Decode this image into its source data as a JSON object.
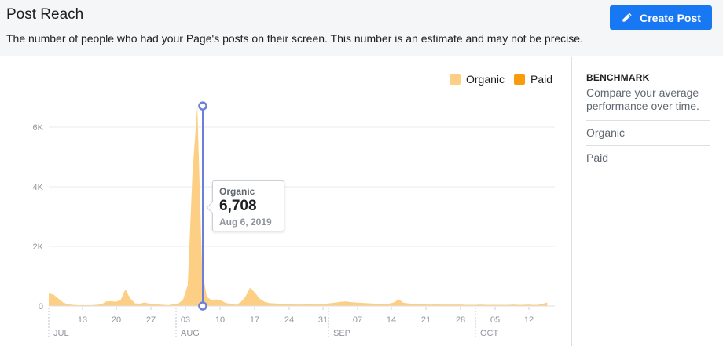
{
  "header": {
    "title": "Post Reach",
    "subtitle": "The number of people who had your Page's posts on their screen. This number is an estimate and may not be precise.",
    "create_button_label": "Create Post",
    "create_button_icon": "pencil-icon",
    "accent_color": "#1877f2"
  },
  "legend": [
    {
      "label": "Organic",
      "color": "#fdcf85"
    },
    {
      "label": "Paid",
      "color": "#f89c0e"
    }
  ],
  "tooltip": {
    "label": "Organic",
    "value": "6,708",
    "date": "Aug 6, 2019"
  },
  "sidebar": {
    "title": "BENCHMARK",
    "description": "Compare your average performance over time.",
    "items": [
      "Organic",
      "Paid"
    ]
  },
  "chart_data": {
    "type": "area",
    "y_ticks": [
      "0",
      "2K",
      "4K",
      "6K"
    ],
    "ylim": [
      0,
      7000
    ],
    "x_day_ticks": [
      "13",
      "20",
      "27",
      "03",
      "10",
      "17",
      "24",
      "31",
      "07",
      "14",
      "21",
      "28",
      "05",
      "12"
    ],
    "x_month_ticks": [
      "JUL",
      "AUG",
      "SEP",
      "OCT"
    ],
    "highlight": {
      "label": "Aug 6, 2019",
      "value": 6708
    },
    "series": [
      {
        "name": "Organic",
        "color": "#fdcf85",
        "x": [
          "Jul 6",
          "Jul 7",
          "Jul 8",
          "Jul 9",
          "Jul 10",
          "Jul 11",
          "Jul 12",
          "Jul 13",
          "Jul 14",
          "Jul 15",
          "Jul 16",
          "Jul 17",
          "Jul 18",
          "Jul 19",
          "Jul 20",
          "Jul 21",
          "Jul 22",
          "Jul 23",
          "Jul 24",
          "Jul 25",
          "Jul 26",
          "Jul 27",
          "Jul 28",
          "Jul 29",
          "Jul 30",
          "Jul 31",
          "Aug 1",
          "Aug 2",
          "Aug 3",
          "Aug 4",
          "Aug 5",
          "Aug 6",
          "Aug 7",
          "Aug 8",
          "Aug 9",
          "Aug 10",
          "Aug 11",
          "Aug 12",
          "Aug 13",
          "Aug 14",
          "Aug 15",
          "Aug 16",
          "Aug 17",
          "Aug 18",
          "Aug 19",
          "Aug 20",
          "Aug 21",
          "Aug 22",
          "Aug 23",
          "Aug 24",
          "Aug 25",
          "Aug 26",
          "Aug 27",
          "Aug 28",
          "Aug 29",
          "Aug 30",
          "Aug 31",
          "Sep 1",
          "Sep 2",
          "Sep 3",
          "Sep 4",
          "Sep 5",
          "Sep 6",
          "Sep 7",
          "Sep 8",
          "Sep 9",
          "Sep 10",
          "Sep 11",
          "Sep 12",
          "Sep 13",
          "Sep 14",
          "Sep 15",
          "Sep 16",
          "Sep 17",
          "Sep 18",
          "Sep 19",
          "Sep 20",
          "Sep 21",
          "Sep 22",
          "Sep 23",
          "Sep 24",
          "Sep 25",
          "Sep 26",
          "Sep 27",
          "Sep 28",
          "Sep 29",
          "Sep 30",
          "Oct 1",
          "Oct 2",
          "Oct 3",
          "Oct 4",
          "Oct 5",
          "Oct 6",
          "Oct 7",
          "Oct 8",
          "Oct 9",
          "Oct 10",
          "Oct 11",
          "Oct 12",
          "Oct 13",
          "Oct 14",
          "Oct 15",
          "Oct 16",
          "Oct 17",
          "Oct 18"
        ],
        "values": [
          420,
          380,
          250,
          120,
          60,
          40,
          30,
          30,
          30,
          30,
          40,
          60,
          150,
          160,
          140,
          200,
          560,
          250,
          90,
          80,
          120,
          80,
          60,
          50,
          40,
          30,
          60,
          80,
          200,
          700,
          4500,
          6708,
          1200,
          300,
          200,
          220,
          180,
          100,
          80,
          40,
          120,
          300,
          620,
          450,
          250,
          140,
          100,
          90,
          80,
          70,
          60,
          60,
          50,
          50,
          60,
          60,
          50,
          60,
          80,
          100,
          120,
          140,
          150,
          130,
          120,
          110,
          100,
          90,
          80,
          80,
          70,
          80,
          120,
          220,
          110,
          90,
          70,
          60,
          60,
          50,
          50,
          60,
          50,
          50,
          50,
          50,
          50,
          40,
          40,
          40,
          50,
          40,
          40,
          40,
          40,
          40,
          40,
          50,
          40,
          40,
          50,
          40,
          40,
          70,
          120
        ]
      },
      {
        "name": "Paid",
        "color": "#f89c0e",
        "values": []
      }
    ]
  }
}
